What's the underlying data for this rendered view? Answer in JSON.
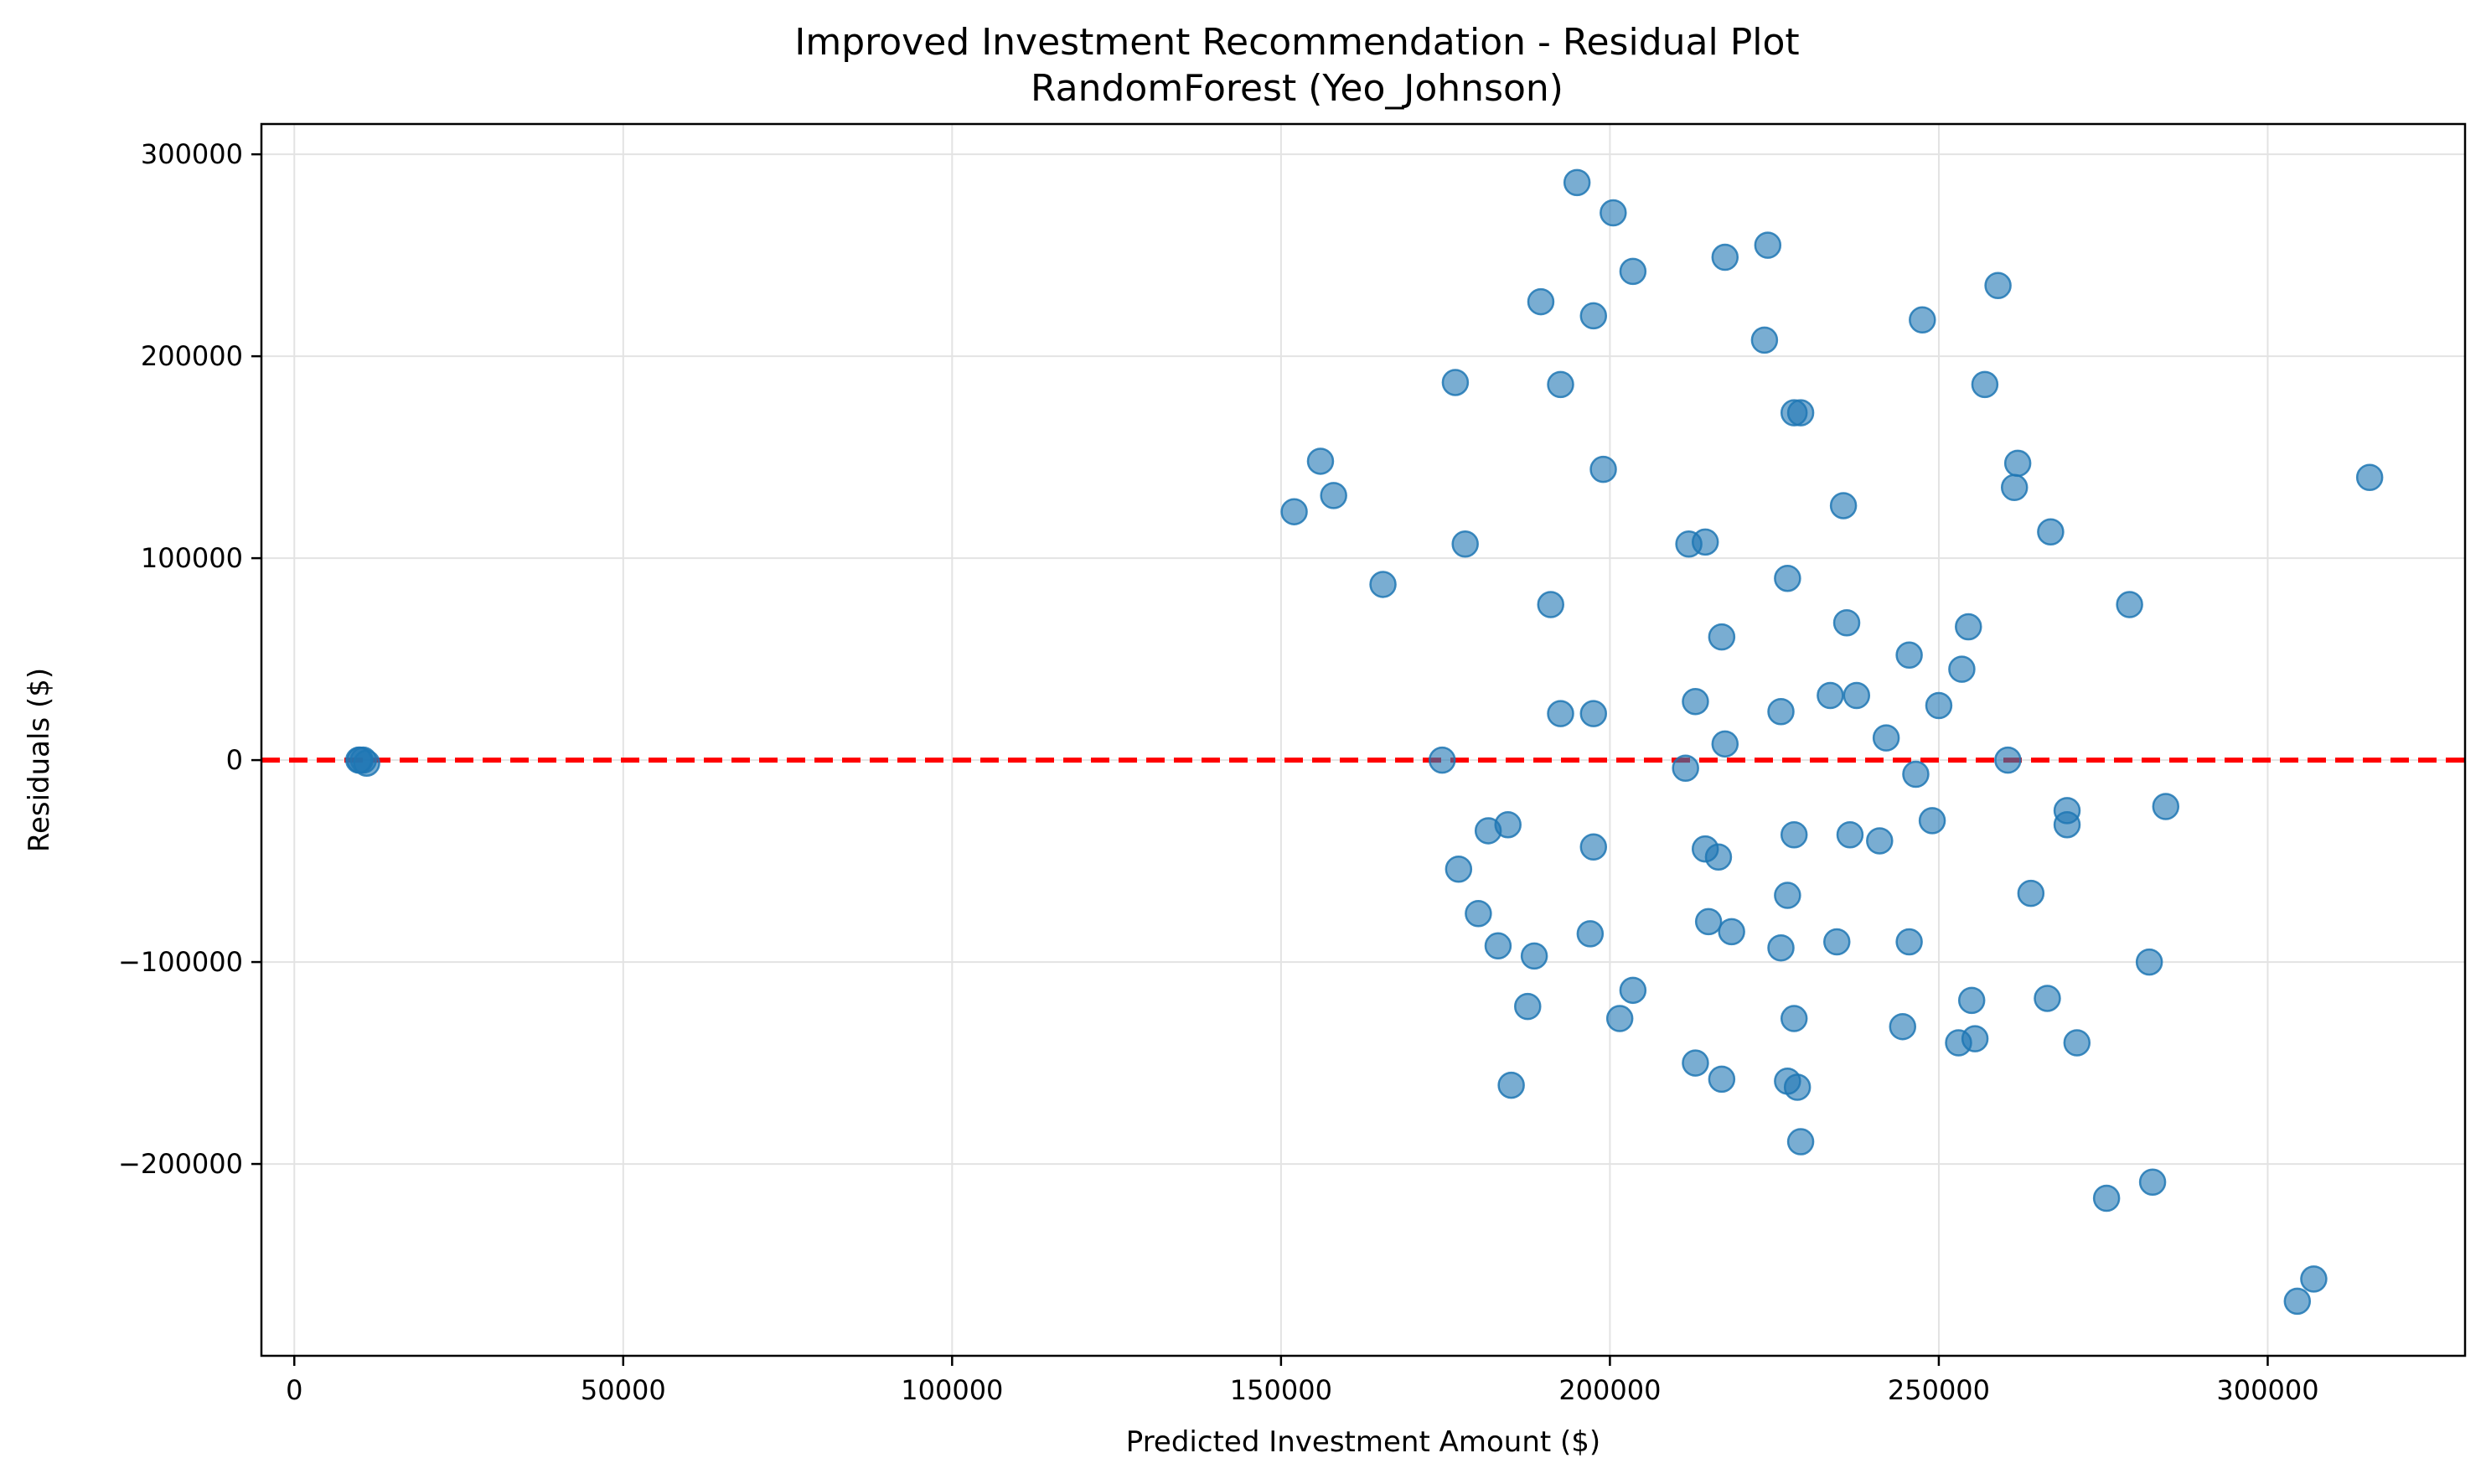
{
  "chart_data": {
    "type": "scatter",
    "title": "Improved Investment Recommendation - Residual Plot",
    "subtitle": "RandomForest (Yeo_Johnson)",
    "xlabel": "Predicted Investment Amount ($)",
    "ylabel": "Residuals ($)",
    "xlim": [
      -5000,
      330000
    ],
    "ylim": [
      -295000,
      315000
    ],
    "xticks": [
      0,
      50000,
      100000,
      150000,
      200000,
      250000,
      300000
    ],
    "xtick_labels": [
      "0",
      "50000",
      "100000",
      "150000",
      "200000",
      "250000",
      "300000"
    ],
    "yticks": [
      -200000,
      -100000,
      0,
      100000,
      200000,
      300000
    ],
    "ytick_labels": [
      "−200000",
      "−100000",
      "0",
      "100000",
      "200000",
      "300000"
    ],
    "grid": true,
    "reference_line": {
      "y": 0,
      "color": "#ff0000",
      "style": "dashed"
    },
    "colors": {
      "points": "#1f77b4",
      "point_opacity": 0.6,
      "reference": "#ff0000"
    },
    "points": [
      [
        10000,
        0
      ],
      [
        10500,
        0
      ],
      [
        9800,
        0
      ],
      [
        11000,
        -1500
      ],
      [
        152000,
        123000
      ],
      [
        156000,
        148000
      ],
      [
        158000,
        131000
      ],
      [
        165500,
        87000
      ],
      [
        174500,
        0
      ],
      [
        176500,
        187000
      ],
      [
        177000,
        -54000
      ],
      [
        178000,
        107000
      ],
      [
        180000,
        -76000
      ],
      [
        181500,
        -35000
      ],
      [
        183000,
        -92000
      ],
      [
        184500,
        -32000
      ],
      [
        185000,
        -161000
      ],
      [
        187500,
        -122000
      ],
      [
        188500,
        -97000
      ],
      [
        189500,
        227000
      ],
      [
        191000,
        77000
      ],
      [
        192500,
        186000
      ],
      [
        192500,
        23000
      ],
      [
        195000,
        286000
      ],
      [
        197000,
        -86000
      ],
      [
        197500,
        -43000
      ],
      [
        197500,
        220000
      ],
      [
        197500,
        23000
      ],
      [
        199000,
        144000
      ],
      [
        200500,
        271000
      ],
      [
        201500,
        -128000
      ],
      [
        203500,
        -114000
      ],
      [
        203500,
        242000
      ],
      [
        211500,
        -4000
      ],
      [
        212000,
        107000
      ],
      [
        213000,
        29000
      ],
      [
        213000,
        -150000
      ],
      [
        214500,
        108000
      ],
      [
        214500,
        -44000
      ],
      [
        215000,
        -80000
      ],
      [
        216500,
        -48000
      ],
      [
        217000,
        -158000
      ],
      [
        217000,
        61000
      ],
      [
        217500,
        8000
      ],
      [
        217500,
        249000
      ],
      [
        218500,
        -85000
      ],
      [
        223500,
        208000
      ],
      [
        224000,
        255000
      ],
      [
        226000,
        -93000
      ],
      [
        226000,
        24000
      ],
      [
        227000,
        -159000
      ],
      [
        227000,
        -67000
      ],
      [
        227000,
        90000
      ],
      [
        228000,
        172000
      ],
      [
        228000,
        -37000
      ],
      [
        228000,
        -128000
      ],
      [
        228500,
        -162000
      ],
      [
        229000,
        172000
      ],
      [
        229000,
        -189000
      ],
      [
        233500,
        32000
      ],
      [
        234500,
        -90000
      ],
      [
        235500,
        126000
      ],
      [
        236000,
        68000
      ],
      [
        236500,
        -37000
      ],
      [
        237500,
        32000
      ],
      [
        241000,
        -40000
      ],
      [
        242000,
        11000
      ],
      [
        244500,
        -132000
      ],
      [
        245500,
        52000
      ],
      [
        245500,
        -90000
      ],
      [
        246500,
        -7000
      ],
      [
        247500,
        218000
      ],
      [
        249000,
        -30000
      ],
      [
        250000,
        27000
      ],
      [
        253000,
        -140000
      ],
      [
        253500,
        45000
      ],
      [
        254500,
        66000
      ],
      [
        255000,
        -119000
      ],
      [
        255500,
        -138000
      ],
      [
        257000,
        186000
      ],
      [
        259000,
        235000
      ],
      [
        260500,
        0
      ],
      [
        261500,
        135000
      ],
      [
        262000,
        147000
      ],
      [
        264000,
        -66000
      ],
      [
        266500,
        -118000
      ],
      [
        267000,
        113000
      ],
      [
        269500,
        -25000
      ],
      [
        269500,
        -32000
      ],
      [
        271000,
        -140000
      ],
      [
        275500,
        -217000
      ],
      [
        279000,
        77000
      ],
      [
        282000,
        -100000
      ],
      [
        282500,
        -209000
      ],
      [
        284500,
        -23000
      ],
      [
        304500,
        -268000
      ],
      [
        307000,
        -257000
      ],
      [
        315500,
        140000
      ]
    ]
  }
}
